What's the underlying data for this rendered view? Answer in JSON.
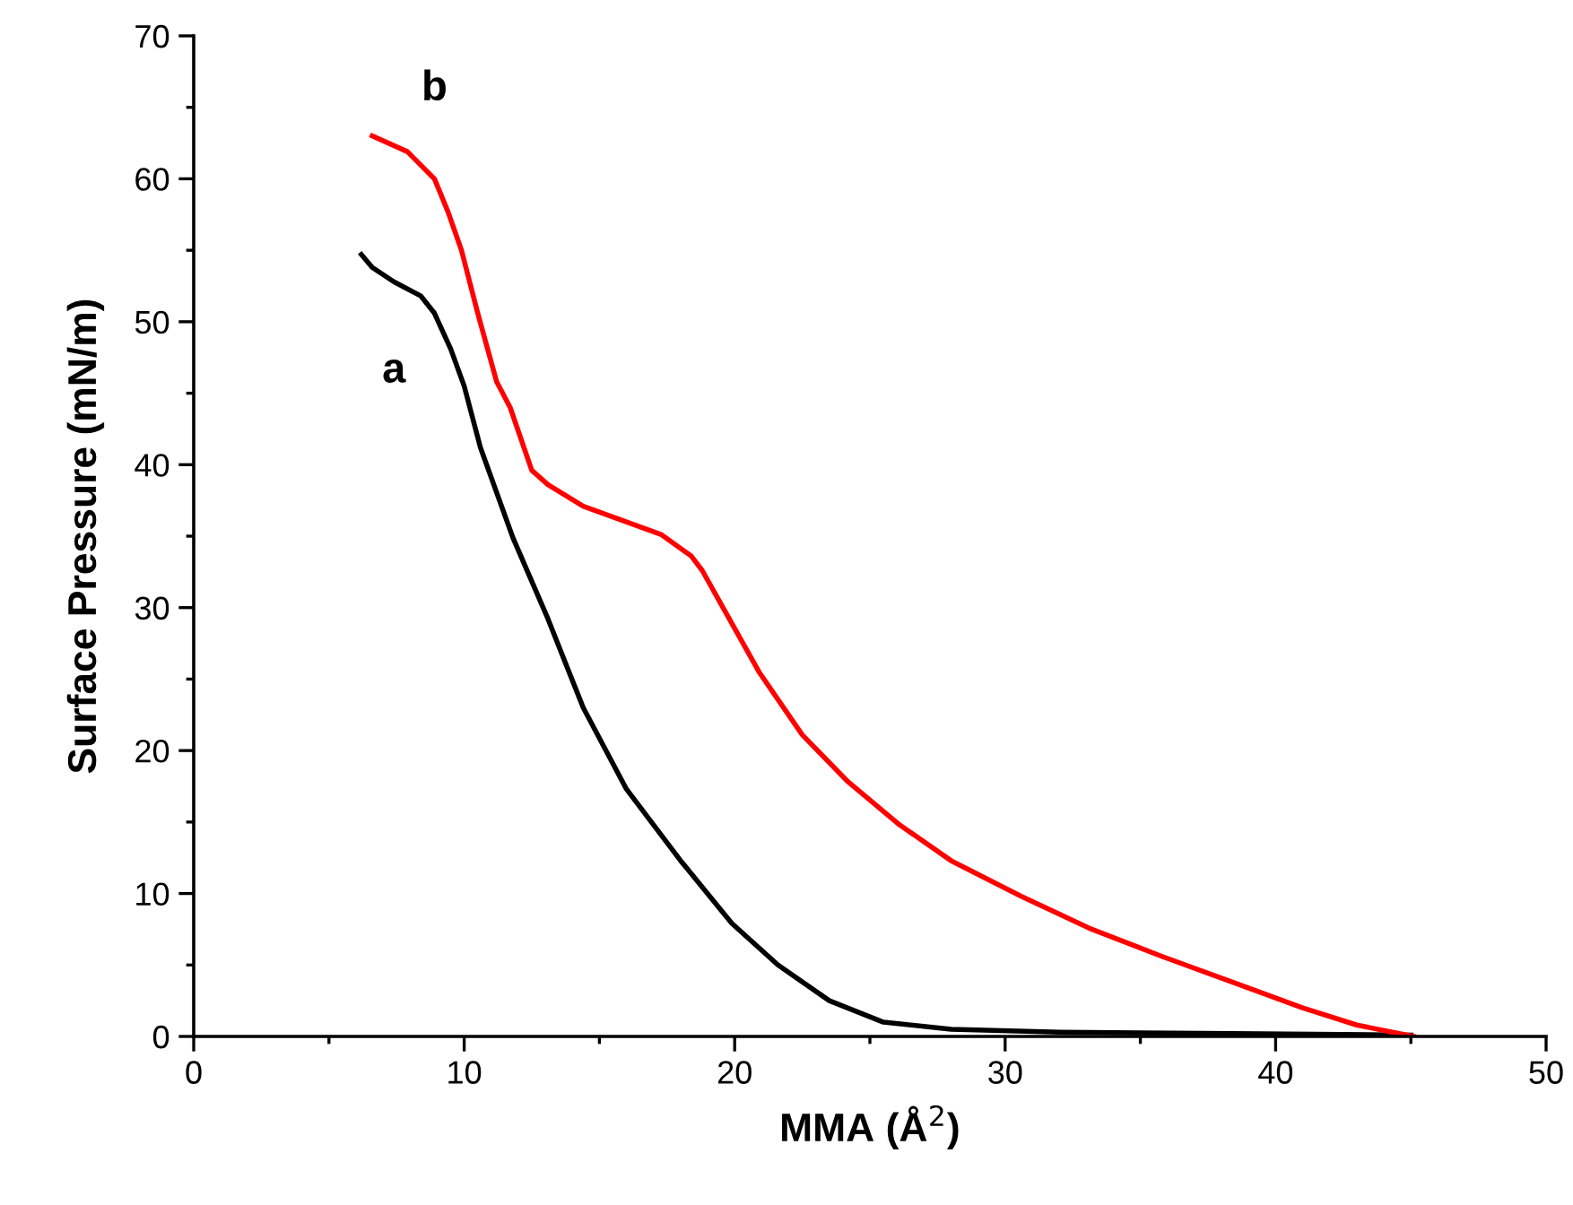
{
  "chart_data": {
    "type": "line",
    "xlabel": "MMA (Å$^{2}$)",
    "ylabel": "Surface Pressure (mN/m)",
    "xlim": [
      0,
      50
    ],
    "ylim": [
      0,
      70
    ],
    "xticks": [
      0,
      10,
      20,
      30,
      40,
      50
    ],
    "yticks": [
      0,
      10,
      20,
      30,
      40,
      50,
      60,
      70
    ],
    "grid": false,
    "legend": false,
    "marker": "none",
    "line_style": "solid",
    "series": [
      {
        "name": "a",
        "color": "#000000",
        "x": [
          6.2,
          6.6,
          7.4,
          8.4,
          8.9,
          9.5,
          10,
          10.6,
          11.8,
          13.1,
          14.4,
          16,
          18,
          19.9,
          21.6,
          23.5,
          25.5,
          28,
          32,
          38.4,
          45
        ],
        "values": [
          54.7,
          53.8,
          52.8,
          51.8,
          50.6,
          48.1,
          45.5,
          41.2,
          34.9,
          29.2,
          23,
          17.3,
          12.3,
          7.9,
          5,
          2.5,
          1,
          0.5,
          0.3,
          0.2,
          0.1
        ]
      },
      {
        "name": "b",
        "color": "#ff0000",
        "x": [
          6.6,
          7.9,
          8.9,
          9.4,
          9.9,
          10.5,
          11.2,
          11.7,
          12.5,
          13.1,
          14.4,
          16,
          17.3,
          18.4,
          18.8,
          19.6,
          20.9,
          22.5,
          24.2,
          26.1,
          28,
          30.6,
          33.2,
          35.8,
          38.4,
          41,
          43,
          45.1
        ],
        "values": [
          63,
          61.9,
          60,
          57.7,
          55,
          50.6,
          45.8,
          44,
          39.6,
          38.6,
          37.1,
          36,
          35.1,
          33.6,
          32.6,
          29.9,
          25.5,
          21.1,
          17.8,
          14.8,
          12.3,
          9.8,
          7.5,
          5.6,
          3.8,
          2,
          0.8,
          0
        ]
      }
    ]
  }
}
